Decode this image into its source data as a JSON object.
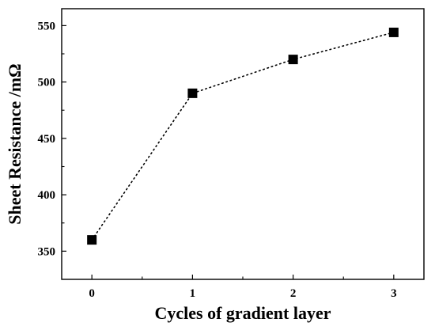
{
  "chart_data": {
    "type": "scatter",
    "title": "",
    "xlabel": "Cycles of gradient layer",
    "ylabel": "Sheet Resistance /mΩ",
    "x_ticks": [
      "0",
      "1",
      "2",
      "3"
    ],
    "y_ticks": [
      "350",
      "400",
      "450",
      "500",
      "550"
    ],
    "xlim": [
      -0.3,
      3.3
    ],
    "ylim": [
      325,
      565
    ],
    "grid": false,
    "series": [
      {
        "x": [
          0,
          1,
          2,
          3
        ],
        "y": [
          360,
          490,
          520,
          544
        ],
        "marker": "square",
        "line_style": "dotted",
        "color": "#000000"
      }
    ]
  }
}
